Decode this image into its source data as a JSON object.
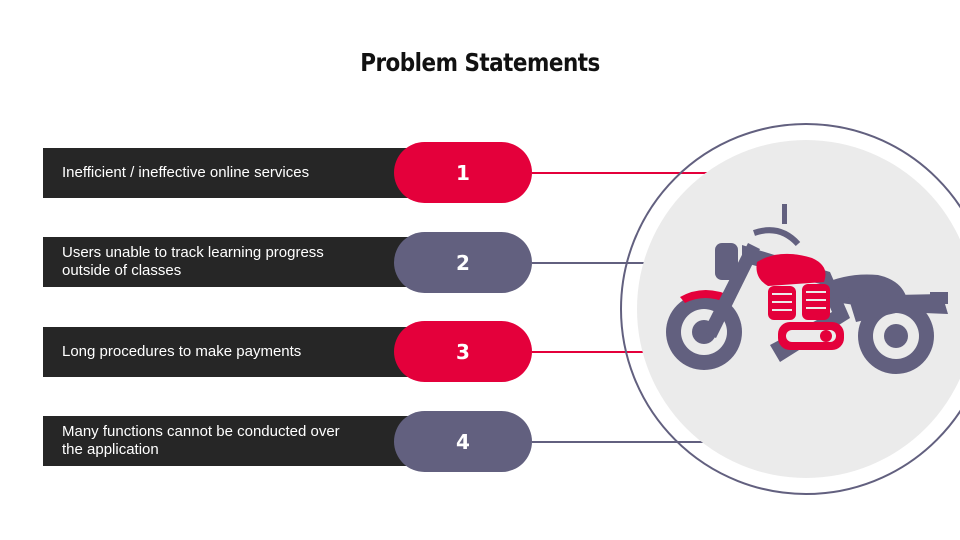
{
  "title": "Problem Statements",
  "colors": {
    "red": "#e4003b",
    "slate": "#62607f",
    "dark": "#262626",
    "circle_fill": "#ebebeb"
  },
  "items": [
    {
      "number": "1",
      "text": "Inefficient / ineffective online services",
      "accent": "red"
    },
    {
      "number": "2",
      "text": "Users unable to track learning progress outside of classes",
      "accent": "slate"
    },
    {
      "number": "3",
      "text": "Long procedures to make payments",
      "accent": "red"
    },
    {
      "number": "4",
      "text": "Many functions cannot be conducted over the application",
      "accent": "slate"
    }
  ],
  "illustration": {
    "icon": "motorcycle-icon"
  }
}
